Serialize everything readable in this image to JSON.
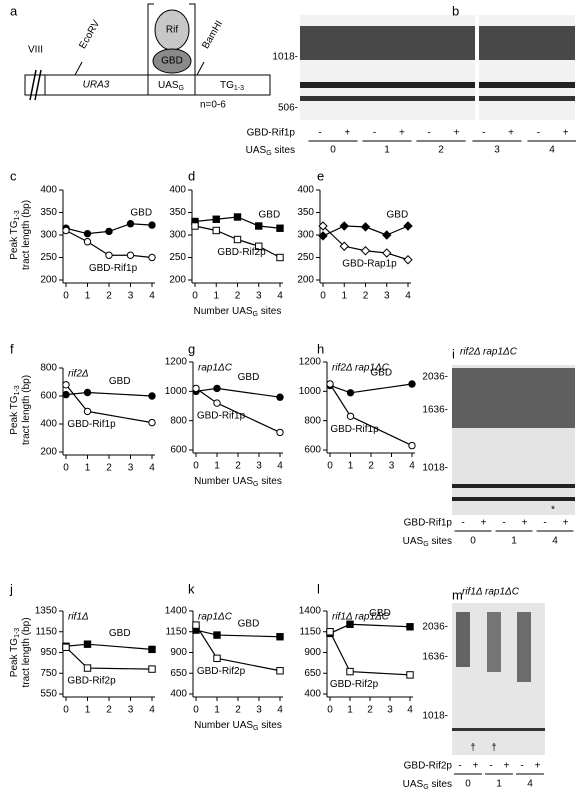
{
  "panel_a": {
    "label": "a",
    "chromosome": "VIII",
    "ecorv": "EcoRV",
    "ura3": "URA3",
    "uas": [
      "UAS",
      "G"
    ],
    "bamhi": "BamHI",
    "tg": [
      "TG",
      "1-3"
    ],
    "rif": "Rif",
    "gbd": "GBD",
    "n": "n=0-6"
  },
  "gels": [
    {
      "panel": "b",
      "size_markers": [
        "1018-",
        "506-"
      ],
      "row_label": "GBD-Rif1p",
      "lanes": [
        "-",
        "+",
        "-",
        "+",
        "-",
        "+",
        "-",
        "+",
        "-",
        "+"
      ],
      "sites_label": [
        "UAS",
        "G",
        " sites"
      ],
      "sites": [
        "0",
        "1",
        "2",
        "3",
        "4"
      ]
    },
    {
      "panel": "i",
      "strain": "rif2Δ  rap1ΔC",
      "size_markers": [
        "2036-",
        "1636-",
        "1018-"
      ],
      "marks": [
        "*"
      ],
      "row_label": "GBD-Rif1p",
      "lanes": [
        "-",
        "+",
        "-",
        "+",
        "-",
        "+"
      ],
      "sites_label": [
        "UAS",
        "G",
        " sites"
      ],
      "sites": [
        "0",
        "1",
        "4"
      ]
    },
    {
      "panel": "m",
      "strain": "rif1Δ  rap1ΔC",
      "size_markers": [
        "2036-",
        "1636-",
        "1018-"
      ],
      "marks": [
        "†",
        "†"
      ],
      "row_label": "GBD-Rif2p",
      "lanes": [
        "-",
        "+",
        "-",
        "+",
        "-",
        "+"
      ],
      "sites_label": [
        "UAS",
        "G",
        " sites"
      ],
      "sites": [
        "0",
        "1",
        "4"
      ]
    }
  ],
  "chart_data": [
    {
      "type": "line",
      "panel": "c",
      "x": [
        0,
        1,
        2,
        3,
        4
      ],
      "xlim": [
        0,
        4
      ],
      "xticks": [
        0,
        1,
        2,
        3,
        4
      ],
      "ylim": [
        200,
        400
      ],
      "yticks": [
        200,
        250,
        300,
        350,
        400
      ],
      "y_label": [
        "Peak TG",
        "1-3",
        "tract length (bp)"
      ],
      "series": [
        {
          "name": "GBD",
          "color": "#000000",
          "marker": "circle",
          "filled": true,
          "values": [
            315,
            303,
            308,
            325,
            322
          ]
        },
        {
          "name": "GBD-Rif1p",
          "color": "#000000",
          "marker": "circle",
          "filled": false,
          "values": [
            310,
            285,
            255,
            255,
            250
          ]
        }
      ]
    },
    {
      "type": "line",
      "panel": "d",
      "x": [
        0,
        1,
        2,
        3,
        4
      ],
      "xlim": [
        0,
        4
      ],
      "xticks": [
        0,
        1,
        2,
        3,
        4
      ],
      "ylim": [
        200,
        400
      ],
      "yticks": [
        200,
        250,
        300,
        350,
        400
      ],
      "x_label": [
        "Number UAS",
        "G",
        " sites"
      ],
      "series": [
        {
          "name": "GBD",
          "color": "#000000",
          "marker": "square",
          "filled": true,
          "values": [
            330,
            335,
            340,
            320,
            315
          ]
        },
        {
          "name": "GBD-Rif2p",
          "color": "#000000",
          "marker": "square",
          "filled": false,
          "values": [
            320,
            310,
            290,
            275,
            250
          ]
        }
      ]
    },
    {
      "type": "line",
      "panel": "e",
      "x": [
        0,
        1,
        2,
        3,
        4
      ],
      "xlim": [
        0,
        4
      ],
      "xticks": [
        0,
        1,
        2,
        3,
        4
      ],
      "ylim": [
        200,
        400
      ],
      "yticks": [
        200,
        250,
        300,
        350,
        400
      ],
      "series": [
        {
          "name": "GBD",
          "color": "#000000",
          "marker": "diamond",
          "filled": true,
          "values": [
            298,
            320,
            318,
            300,
            320
          ]
        },
        {
          "name": "GBD-Rap1p",
          "color": "#000000",
          "marker": "diamond",
          "filled": false,
          "values": [
            320,
            275,
            265,
            260,
            245
          ]
        }
      ]
    },
    {
      "type": "line",
      "panel": "f",
      "annotation": "rif2Δ",
      "x": [
        0,
        1,
        4
      ],
      "xlim": [
        0,
        4
      ],
      "xticks": [
        0,
        1,
        2,
        3,
        4
      ],
      "ylim": [
        200,
        800
      ],
      "yticks": [
        200,
        400,
        600,
        800
      ],
      "y_label": [
        "Peak TG",
        "1-3",
        "tract length (bp)"
      ],
      "series": [
        {
          "name": "GBD",
          "color": "#000000",
          "marker": "circle",
          "filled": true,
          "values": [
            610,
            625,
            600
          ]
        },
        {
          "name": "GBD-Rif1p",
          "color": "#000000",
          "marker": "circle",
          "filled": false,
          "values": [
            680,
            490,
            410
          ]
        }
      ]
    },
    {
      "type": "line",
      "panel": "g",
      "annotation": "rap1ΔC",
      "x": [
        0,
        1,
        4
      ],
      "xlim": [
        0,
        4
      ],
      "xticks": [
        0,
        1,
        2,
        3,
        4
      ],
      "ylim": [
        600,
        1200
      ],
      "yticks": [
        600,
        800,
        1000,
        1200
      ],
      "x_label": [
        "Number UAS",
        "G",
        " sites"
      ],
      "series": [
        {
          "name": "GBD",
          "color": "#000000",
          "marker": "circle",
          "filled": true,
          "values": [
            1000,
            1020,
            960
          ]
        },
        {
          "name": "GBD-Rif1p",
          "color": "#000000",
          "marker": "circle",
          "filled": false,
          "values": [
            1020,
            920,
            720
          ]
        }
      ]
    },
    {
      "type": "line",
      "panel": "h",
      "annotation": "rif2Δ  rap1ΔC",
      "x": [
        0,
        1,
        4
      ],
      "xlim": [
        0,
        4
      ],
      "xticks": [
        0,
        1,
        2,
        3,
        4
      ],
      "ylim": [
        600,
        1200
      ],
      "yticks": [
        600,
        800,
        1000,
        1200
      ],
      "series": [
        {
          "name": "GBD",
          "color": "#000000",
          "marker": "circle",
          "filled": true,
          "values": [
            1040,
            990,
            1050
          ]
        },
        {
          "name": "GBD-Rif1p",
          "color": "#000000",
          "marker": "circle",
          "filled": false,
          "values": [
            1050,
            830,
            630
          ]
        }
      ]
    },
    {
      "type": "line",
      "panel": "j",
      "annotation": "rif1Δ",
      "x": [
        0,
        1,
        4
      ],
      "xlim": [
        0,
        4
      ],
      "xticks": [
        0,
        1,
        2,
        3,
        4
      ],
      "ylim": [
        550,
        1350
      ],
      "yticks": [
        550,
        750,
        950,
        1150,
        1350
      ],
      "y_label": [
        "Peak TG",
        "1-3",
        "tract length (bp)"
      ],
      "series": [
        {
          "name": "GBD",
          "color": "#000000",
          "marker": "square",
          "filled": true,
          "values": [
            1010,
            1030,
            980
          ]
        },
        {
          "name": "GBD-Rif2p",
          "color": "#000000",
          "marker": "square",
          "filled": false,
          "values": [
            1000,
            800,
            790
          ]
        }
      ]
    },
    {
      "type": "line",
      "panel": "k",
      "annotation": "rap1ΔC",
      "x": [
        0,
        1,
        4
      ],
      "xlim": [
        0,
        4
      ],
      "xticks": [
        0,
        1,
        2,
        3,
        4
      ],
      "ylim": [
        400,
        1400
      ],
      "yticks": [
        400,
        650,
        900,
        1150,
        1400
      ],
      "x_label": [
        "Number UAS",
        "G",
        " sites"
      ],
      "series": [
        {
          "name": "GBD",
          "color": "#000000",
          "marker": "square",
          "filled": true,
          "values": [
            1170,
            1110,
            1090
          ]
        },
        {
          "name": "GBD-Rif2p",
          "color": "#000000",
          "marker": "square",
          "filled": false,
          "values": [
            1230,
            830,
            680
          ]
        }
      ]
    },
    {
      "type": "line",
      "panel": "l",
      "annotation": "rif1Δ  rap1ΔC",
      "x": [
        0,
        1,
        4
      ],
      "xlim": [
        0,
        4
      ],
      "xticks": [
        0,
        1,
        2,
        3,
        4
      ],
      "ylim": [
        400,
        1400
      ],
      "yticks": [
        400,
        650,
        900,
        1150,
        1400
      ],
      "series": [
        {
          "name": "GBD",
          "color": "#000000",
          "marker": "square",
          "filled": true,
          "values": [
            1130,
            1240,
            1210
          ]
        },
        {
          "name": "GBD-Rif2p",
          "color": "#000000",
          "marker": "square",
          "filled": false,
          "values": [
            1150,
            670,
            630
          ]
        }
      ]
    }
  ]
}
